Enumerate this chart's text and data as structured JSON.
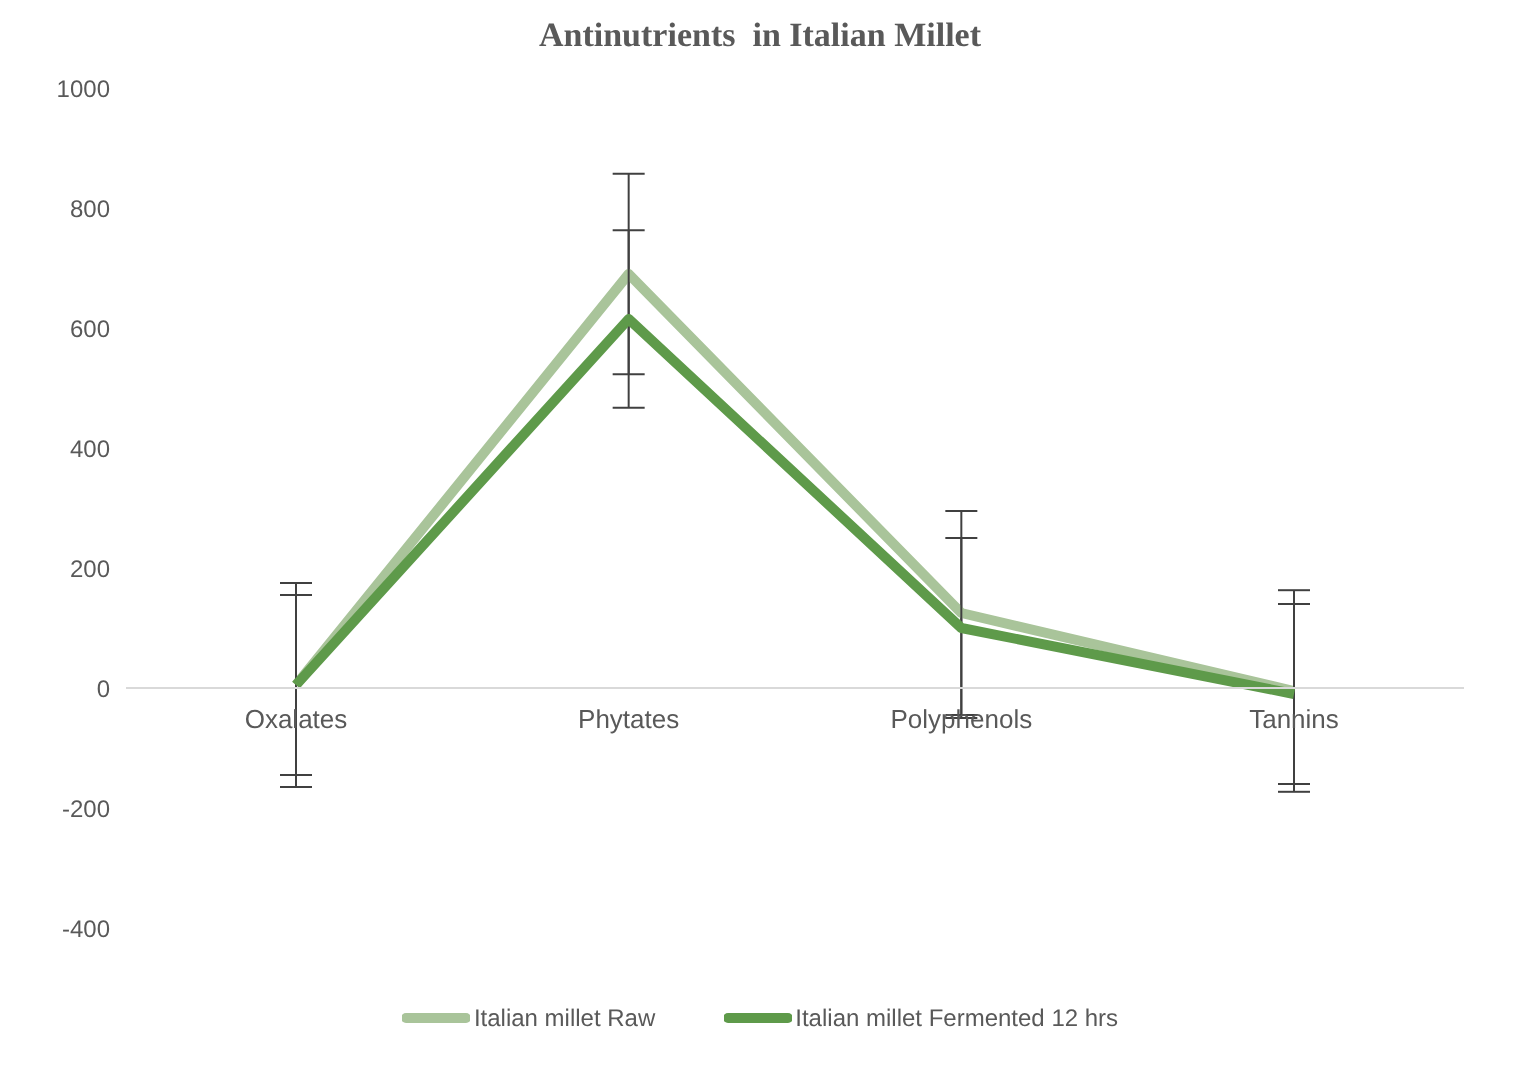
{
  "chart_data": {
    "type": "line",
    "title": "Antinutrients  in Italian Millet",
    "categories": [
      "Oxalates",
      "Phytates",
      "Polyphenols",
      "Tannins"
    ],
    "series": [
      {
        "name": "Italian millet Raw",
        "color": "#a9c49a",
        "values": [
          5,
          690,
          125,
          -5
        ],
        "errors": [
          170,
          167,
          170,
          168
        ]
      },
      {
        "name": "Italian millet Fermented 12 hrs",
        "color": "#5e9a4a",
        "values": [
          5,
          615,
          100,
          -10
        ],
        "errors": [
          150,
          148,
          150,
          150
        ]
      }
    ],
    "ylim": [
      -400,
      1000
    ],
    "yticks": [
      -400,
      -200,
      0,
      200,
      400,
      600,
      800,
      1000
    ],
    "legend": "bottom",
    "marker": "none",
    "line_style": "solid"
  }
}
